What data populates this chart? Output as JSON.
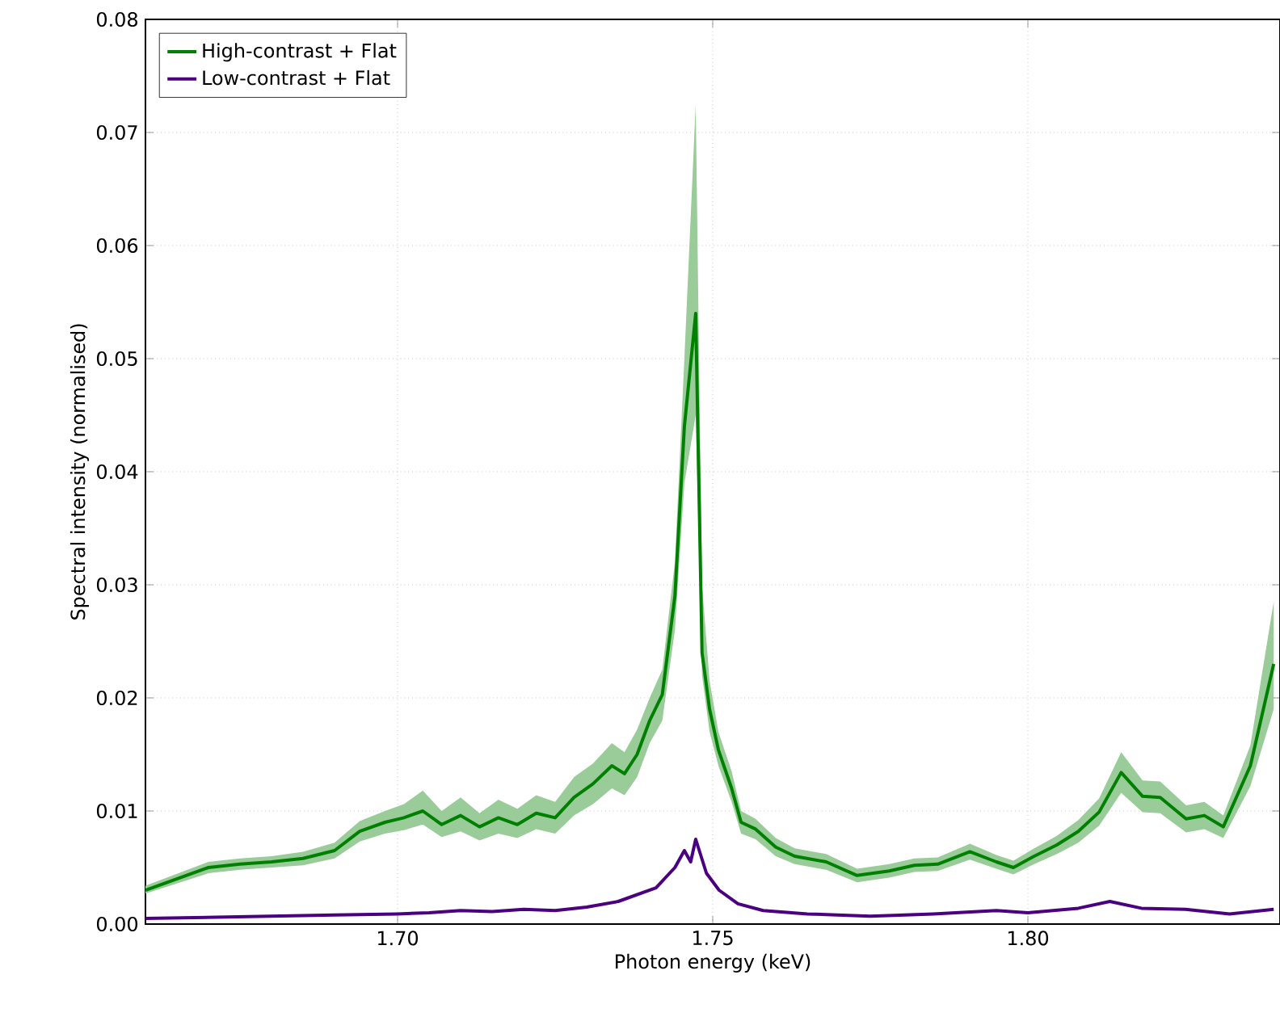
{
  "chart_data": {
    "type": "line",
    "xlabel": "Photon energy (keV)",
    "ylabel": "Spectral intensity (normalised)",
    "xlim": [
      1.66,
      1.84
    ],
    "ylim": [
      0,
      0.08
    ],
    "xticks": [
      {
        "value": 1.7,
        "label": "1.70"
      },
      {
        "value": 1.75,
        "label": "1.75"
      },
      {
        "value": 1.8,
        "label": "1.80"
      }
    ],
    "yticks": [
      {
        "value": 0,
        "label": "0.00"
      },
      {
        "value": 0.01,
        "label": "0.01"
      },
      {
        "value": 0.02,
        "label": "0.02"
      },
      {
        "value": 0.03,
        "label": "0.03"
      },
      {
        "value": 0.04,
        "label": "0.04"
      },
      {
        "value": 0.05,
        "label": "0.05"
      },
      {
        "value": 0.06,
        "label": "0.06"
      },
      {
        "value": 0.07,
        "label": "0.07"
      },
      {
        "value": 0.08,
        "label": "0.08"
      }
    ],
    "grid": true,
    "legend": "top left",
    "series": [
      {
        "name": "High-contrast + Flat",
        "color": "#008000",
        "x": [
          1.66,
          1.67,
          1.675,
          1.68,
          1.685,
          1.69,
          1.694,
          1.698,
          1.701,
          1.704,
          1.707,
          1.71,
          1.713,
          1.716,
          1.719,
          1.722,
          1.725,
          1.728,
          1.731,
          1.734,
          1.736,
          1.738,
          1.74,
          1.742,
          1.744,
          1.7455,
          1.7473,
          1.7483,
          1.7495,
          1.7509,
          1.753,
          1.7545,
          1.7568,
          1.76,
          1.763,
          1.768,
          1.7729,
          1.778,
          1.782,
          1.7857,
          1.7908,
          1.795,
          1.7977,
          1.801,
          1.8046,
          1.808,
          1.8113,
          1.8148,
          1.8182,
          1.821,
          1.8251,
          1.828,
          1.831,
          1.8353,
          1.839
        ],
        "values": [
          0.003,
          0.005,
          0.0053,
          0.0055,
          0.0058,
          0.0065,
          0.0082,
          0.009,
          0.0094,
          0.01,
          0.0088,
          0.0096,
          0.0086,
          0.0094,
          0.0088,
          0.0098,
          0.0094,
          0.0112,
          0.0124,
          0.014,
          0.0133,
          0.015,
          0.018,
          0.0203,
          0.029,
          0.044,
          0.054,
          0.024,
          0.019,
          0.0154,
          0.012,
          0.009,
          0.0084,
          0.0068,
          0.006,
          0.0055,
          0.0043,
          0.0047,
          0.0052,
          0.0053,
          0.0064,
          0.0055,
          0.005,
          0.006,
          0.007,
          0.0082,
          0.0099,
          0.0134,
          0.0113,
          0.0112,
          0.0093,
          0.0096,
          0.0086,
          0.014,
          0.023
        ],
        "lower": [
          0.0027,
          0.0045,
          0.0048,
          0.005,
          0.0052,
          0.0058,
          0.0073,
          0.008,
          0.0083,
          0.0088,
          0.0077,
          0.0082,
          0.0074,
          0.008,
          0.0076,
          0.0084,
          0.008,
          0.0096,
          0.0106,
          0.012,
          0.0114,
          0.013,
          0.016,
          0.018,
          0.026,
          0.039,
          0.045,
          0.022,
          0.017,
          0.014,
          0.0108,
          0.008,
          0.0075,
          0.006,
          0.0053,
          0.0048,
          0.0037,
          0.0041,
          0.0046,
          0.0047,
          0.0057,
          0.0049,
          0.0044,
          0.0053,
          0.0062,
          0.0072,
          0.0087,
          0.0116,
          0.0099,
          0.0098,
          0.0081,
          0.0084,
          0.0076,
          0.0122,
          0.019
        ],
        "upper": [
          0.0034,
          0.0055,
          0.0058,
          0.006,
          0.0064,
          0.0072,
          0.0091,
          0.01,
          0.0106,
          0.0118,
          0.01,
          0.0112,
          0.0098,
          0.011,
          0.0102,
          0.0114,
          0.0108,
          0.013,
          0.0142,
          0.016,
          0.0152,
          0.0172,
          0.02,
          0.0225,
          0.032,
          0.05,
          0.0725,
          0.03,
          0.0215,
          0.017,
          0.0135,
          0.01,
          0.0093,
          0.0076,
          0.0067,
          0.0062,
          0.0049,
          0.0053,
          0.0058,
          0.0059,
          0.0071,
          0.0061,
          0.0056,
          0.0067,
          0.0078,
          0.0092,
          0.0111,
          0.0152,
          0.0127,
          0.0126,
          0.0105,
          0.0108,
          0.0096,
          0.0158,
          0.0285
        ]
      },
      {
        "name": "Low-contrast + Flat",
        "color": "#4b0082",
        "x": [
          1.66,
          1.67,
          1.68,
          1.69,
          1.7,
          1.705,
          1.71,
          1.715,
          1.72,
          1.725,
          1.73,
          1.735,
          1.738,
          1.741,
          1.744,
          1.7455,
          1.7465,
          1.7473,
          1.749,
          1.751,
          1.754,
          1.758,
          1.765,
          1.775,
          1.785,
          1.795,
          1.8,
          1.808,
          1.813,
          1.818,
          1.825,
          1.832,
          1.839
        ],
        "values": [
          0.0005,
          0.0006,
          0.0007,
          0.0008,
          0.0009,
          0.001,
          0.0012,
          0.0011,
          0.0013,
          0.0012,
          0.0015,
          0.002,
          0.0026,
          0.0032,
          0.005,
          0.0065,
          0.0055,
          0.0075,
          0.0045,
          0.003,
          0.0018,
          0.0012,
          0.0009,
          0.0007,
          0.0009,
          0.0012,
          0.001,
          0.0014,
          0.002,
          0.0014,
          0.0013,
          0.0009,
          0.0013
        ]
      }
    ]
  }
}
